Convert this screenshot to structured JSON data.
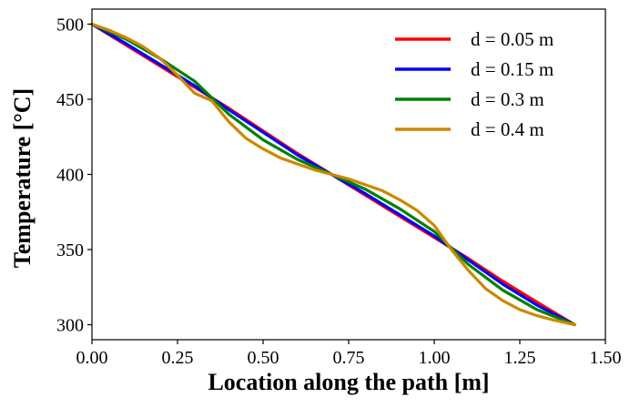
{
  "chart_data": {
    "type": "line",
    "title": "",
    "xlabel": "Location along the path [m]",
    "ylabel": "Temperature [°C]",
    "xlim": [
      0.0,
      1.5
    ],
    "ylim": [
      290,
      510
    ],
    "xticks": [
      0.0,
      0.25,
      0.5,
      0.75,
      1.0,
      1.25,
      1.5
    ],
    "xtick_labels": [
      "0.00",
      "0.25",
      "0.50",
      "0.75",
      "1.00",
      "1.25",
      "1.50"
    ],
    "yticks": [
      300,
      350,
      400,
      450,
      500
    ],
    "ytick_labels": [
      "300",
      "350",
      "400",
      "450",
      "500"
    ],
    "grid": false,
    "legend_position": "top-right",
    "series": [
      {
        "name": "d = 0.05 m",
        "color": "#ff0000",
        "x": [
          0.0,
          0.1,
          0.2,
          0.3,
          0.35,
          0.4,
          0.5,
          0.6,
          0.7,
          0.8,
          0.9,
          1.0,
          1.05,
          1.1,
          1.2,
          1.3,
          1.41
        ],
        "y": [
          500,
          486,
          472,
          458,
          451,
          444,
          429,
          414,
          400,
          386,
          372,
          358,
          351,
          344,
          329,
          315,
          300
        ]
      },
      {
        "name": "d = 0.15 m",
        "color": "#0000ff",
        "x": [
          0.0,
          0.1,
          0.2,
          0.3,
          0.35,
          0.4,
          0.5,
          0.6,
          0.7,
          0.8,
          0.9,
          1.0,
          1.05,
          1.1,
          1.2,
          1.3,
          1.41
        ],
        "y": [
          500,
          487,
          473,
          459,
          451,
          443,
          428,
          413,
          400,
          387,
          373,
          359,
          351,
          343,
          327,
          313,
          300
        ]
      },
      {
        "name": "d = 0.3 m",
        "color": "#008000",
        "x": [
          0.0,
          0.1,
          0.2,
          0.3,
          0.35,
          0.4,
          0.5,
          0.6,
          0.7,
          0.8,
          0.9,
          1.0,
          1.05,
          1.1,
          1.2,
          1.3,
          1.41
        ],
        "y": [
          500,
          490,
          477,
          462,
          451,
          440,
          423,
          410,
          400,
          390,
          377,
          362,
          351,
          340,
          323,
          310,
          300
        ]
      },
      {
        "name": "d = 0.4 m",
        "color": "#cc8800",
        "x": [
          0.0,
          0.05,
          0.1,
          0.15,
          0.2,
          0.25,
          0.3,
          0.35,
          0.4,
          0.45,
          0.5,
          0.55,
          0.6,
          0.65,
          0.7,
          0.75,
          0.8,
          0.85,
          0.9,
          0.95,
          1.0,
          1.05,
          1.1,
          1.15,
          1.2,
          1.25,
          1.3,
          1.35,
          1.41
        ],
        "y": [
          500,
          496,
          491,
          485,
          477,
          466,
          454,
          449,
          435,
          424,
          417,
          411,
          407,
          403,
          400,
          397,
          393,
          389,
          383,
          376,
          366,
          350,
          336,
          324,
          316,
          310,
          306,
          303,
          300
        ]
      }
    ]
  }
}
